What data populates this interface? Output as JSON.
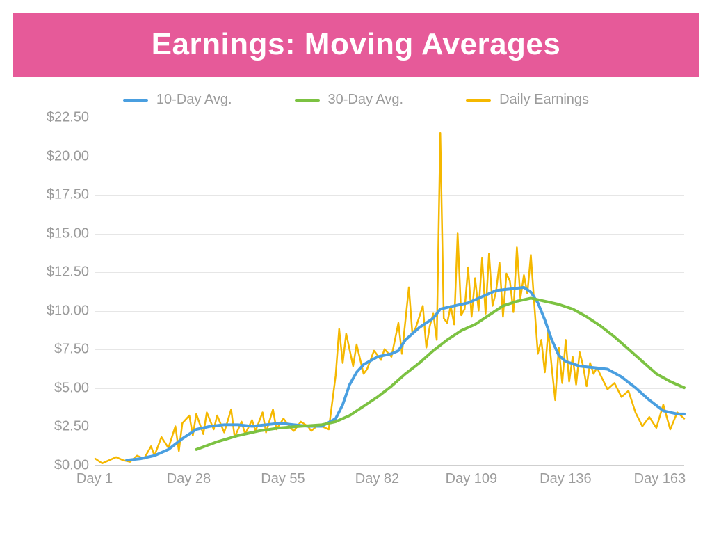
{
  "title": {
    "text": "Earnings: Moving Averages",
    "bg_color": "#e65a99",
    "text_color": "#ffffff",
    "font_size": 44
  },
  "legend": {
    "items": [
      {
        "label": "10-Day Avg.",
        "color": "#4a9fe0"
      },
      {
        "label": "30-Day Avg.",
        "color": "#7cc242"
      },
      {
        "label": "Daily Earnings",
        "color": "#f5b800"
      }
    ],
    "font_color": "#9b9b9b",
    "font_size": 20
  },
  "chart": {
    "type": "line",
    "background_color": "#ffffff",
    "grid_color": "#e6e6e6",
    "axis_color": "#cfcfcf",
    "label_color": "#9b9b9b",
    "label_font_size": 20,
    "xlim": [
      1,
      170
    ],
    "ylim": [
      0,
      22.5
    ],
    "y_ticks": [
      {
        "v": 0.0,
        "label": "$0.00"
      },
      {
        "v": 2.5,
        "label": "$2.50"
      },
      {
        "v": 5.0,
        "label": "$5.00"
      },
      {
        "v": 7.5,
        "label": "$7.50"
      },
      {
        "v": 10.0,
        "label": "$10.00"
      },
      {
        "v": 12.5,
        "label": "$12.50"
      },
      {
        "v": 15.0,
        "label": "$15.00"
      },
      {
        "v": 17.5,
        "label": "$17.50"
      },
      {
        "v": 20.0,
        "label": "$20.00"
      },
      {
        "v": 22.5,
        "label": "$22.50"
      }
    ],
    "x_ticks": [
      {
        "v": 1,
        "label": "Day 1"
      },
      {
        "v": 28,
        "label": "Day 28"
      },
      {
        "v": 55,
        "label": "Day 55"
      },
      {
        "v": 82,
        "label": "Day 82"
      },
      {
        "v": 109,
        "label": "Day 109"
      },
      {
        "v": 136,
        "label": "Day 136"
      },
      {
        "v": 163,
        "label": "Day 163"
      }
    ],
    "series": [
      {
        "name": "Daily Earnings",
        "color": "#f5b800",
        "width": 2.5,
        "points": [
          [
            1,
            0.4
          ],
          [
            3,
            0.1
          ],
          [
            5,
            0.3
          ],
          [
            7,
            0.5
          ],
          [
            9,
            0.3
          ],
          [
            11,
            0.2
          ],
          [
            13,
            0.6
          ],
          [
            15,
            0.4
          ],
          [
            17,
            1.2
          ],
          [
            18,
            0.6
          ],
          [
            20,
            1.8
          ],
          [
            22,
            1.1
          ],
          [
            24,
            2.5
          ],
          [
            25,
            0.9
          ],
          [
            26,
            2.7
          ],
          [
            28,
            3.2
          ],
          [
            29,
            1.9
          ],
          [
            30,
            3.3
          ],
          [
            32,
            2.0
          ],
          [
            33,
            3.4
          ],
          [
            35,
            2.3
          ],
          [
            36,
            3.2
          ],
          [
            38,
            2.1
          ],
          [
            40,
            3.6
          ],
          [
            41,
            1.8
          ],
          [
            43,
            2.8
          ],
          [
            44,
            2.0
          ],
          [
            46,
            2.9
          ],
          [
            47,
            2.2
          ],
          [
            49,
            3.4
          ],
          [
            50,
            2.1
          ],
          [
            52,
            3.6
          ],
          [
            53,
            2.3
          ],
          [
            55,
            3.0
          ],
          [
            57,
            2.4
          ],
          [
            58,
            2.2
          ],
          [
            60,
            2.8
          ],
          [
            62,
            2.5
          ],
          [
            63,
            2.2
          ],
          [
            65,
            2.6
          ],
          [
            67,
            2.4
          ],
          [
            68,
            2.3
          ],
          [
            70,
            5.8
          ],
          [
            71,
            8.8
          ],
          [
            72,
            6.6
          ],
          [
            73,
            8.5
          ],
          [
            75,
            6.4
          ],
          [
            76,
            7.8
          ],
          [
            78,
            5.9
          ],
          [
            79,
            6.2
          ],
          [
            81,
            7.4
          ],
          [
            83,
            6.8
          ],
          [
            84,
            7.5
          ],
          [
            86,
            7.0
          ],
          [
            88,
            9.2
          ],
          [
            89,
            7.2
          ],
          [
            91,
            11.5
          ],
          [
            92,
            8.5
          ],
          [
            93,
            8.9
          ],
          [
            95,
            10.3
          ],
          [
            96,
            7.6
          ],
          [
            97,
            9.0
          ],
          [
            98,
            9.8
          ],
          [
            99,
            8.1
          ],
          [
            100,
            21.5
          ],
          [
            101,
            9.5
          ],
          [
            102,
            9.2
          ],
          [
            103,
            10.3
          ],
          [
            104,
            9.1
          ],
          [
            105,
            15.0
          ],
          [
            106,
            9.7
          ],
          [
            107,
            10.1
          ],
          [
            108,
            12.8
          ],
          [
            109,
            9.6
          ],
          [
            110,
            12.1
          ],
          [
            111,
            10.0
          ],
          [
            112,
            13.4
          ],
          [
            113,
            9.8
          ],
          [
            114,
            13.7
          ],
          [
            115,
            10.3
          ],
          [
            116,
            11.2
          ],
          [
            117,
            13.1
          ],
          [
            118,
            9.6
          ],
          [
            119,
            12.4
          ],
          [
            120,
            11.9
          ],
          [
            121,
            9.9
          ],
          [
            122,
            14.1
          ],
          [
            123,
            10.8
          ],
          [
            124,
            12.3
          ],
          [
            125,
            11.1
          ],
          [
            126,
            13.6
          ],
          [
            127,
            10.4
          ],
          [
            128,
            7.2
          ],
          [
            129,
            8.1
          ],
          [
            130,
            6.0
          ],
          [
            131,
            8.7
          ],
          [
            132,
            6.3
          ],
          [
            133,
            4.2
          ],
          [
            134,
            7.6
          ],
          [
            135,
            5.3
          ],
          [
            136,
            8.1
          ],
          [
            137,
            5.4
          ],
          [
            138,
            7.0
          ],
          [
            139,
            5.2
          ],
          [
            140,
            7.3
          ],
          [
            141,
            6.4
          ],
          [
            142,
            5.1
          ],
          [
            143,
            6.6
          ],
          [
            144,
            5.9
          ],
          [
            145,
            6.3
          ],
          [
            146,
            5.8
          ],
          [
            148,
            4.9
          ],
          [
            150,
            5.3
          ],
          [
            152,
            4.4
          ],
          [
            154,
            4.8
          ],
          [
            156,
            3.4
          ],
          [
            158,
            2.5
          ],
          [
            160,
            3.1
          ],
          [
            162,
            2.4
          ],
          [
            164,
            3.9
          ],
          [
            166,
            2.3
          ],
          [
            168,
            3.4
          ],
          [
            170,
            3.0
          ]
        ]
      },
      {
        "name": "10-Day Avg.",
        "color": "#4a9fe0",
        "width": 4,
        "points": [
          [
            10,
            0.3
          ],
          [
            14,
            0.4
          ],
          [
            18,
            0.6
          ],
          [
            22,
            1.0
          ],
          [
            26,
            1.7
          ],
          [
            30,
            2.3
          ],
          [
            34,
            2.5
          ],
          [
            38,
            2.6
          ],
          [
            42,
            2.6
          ],
          [
            46,
            2.5
          ],
          [
            50,
            2.6
          ],
          [
            54,
            2.7
          ],
          [
            58,
            2.6
          ],
          [
            62,
            2.5
          ],
          [
            66,
            2.5
          ],
          [
            70,
            3.0
          ],
          [
            72,
            3.9
          ],
          [
            74,
            5.2
          ],
          [
            76,
            6.0
          ],
          [
            78,
            6.5
          ],
          [
            82,
            7.0
          ],
          [
            86,
            7.2
          ],
          [
            88,
            7.4
          ],
          [
            90,
            8.1
          ],
          [
            94,
            8.9
          ],
          [
            98,
            9.5
          ],
          [
            100,
            10.1
          ],
          [
            104,
            10.3
          ],
          [
            108,
            10.5
          ],
          [
            112,
            10.9
          ],
          [
            116,
            11.3
          ],
          [
            120,
            11.4
          ],
          [
            124,
            11.5
          ],
          [
            126,
            11.2
          ],
          [
            128,
            10.5
          ],
          [
            130,
            9.4
          ],
          [
            132,
            8.1
          ],
          [
            134,
            7.1
          ],
          [
            136,
            6.7
          ],
          [
            140,
            6.4
          ],
          [
            144,
            6.3
          ],
          [
            148,
            6.2
          ],
          [
            152,
            5.7
          ],
          [
            156,
            5.0
          ],
          [
            160,
            4.2
          ],
          [
            164,
            3.5
          ],
          [
            168,
            3.3
          ],
          [
            170,
            3.3
          ]
        ]
      },
      {
        "name": "30-Day Avg.",
        "color": "#7cc242",
        "width": 4,
        "points": [
          [
            30,
            1.0
          ],
          [
            36,
            1.5
          ],
          [
            42,
            1.9
          ],
          [
            48,
            2.2
          ],
          [
            54,
            2.4
          ],
          [
            60,
            2.5
          ],
          [
            66,
            2.6
          ],
          [
            70,
            2.8
          ],
          [
            74,
            3.2
          ],
          [
            78,
            3.8
          ],
          [
            82,
            4.4
          ],
          [
            86,
            5.1
          ],
          [
            90,
            5.9
          ],
          [
            94,
            6.6
          ],
          [
            98,
            7.4
          ],
          [
            102,
            8.1
          ],
          [
            106,
            8.7
          ],
          [
            110,
            9.1
          ],
          [
            114,
            9.7
          ],
          [
            118,
            10.3
          ],
          [
            122,
            10.6
          ],
          [
            126,
            10.8
          ],
          [
            130,
            10.6
          ],
          [
            134,
            10.4
          ],
          [
            138,
            10.1
          ],
          [
            142,
            9.6
          ],
          [
            146,
            9.0
          ],
          [
            150,
            8.3
          ],
          [
            154,
            7.5
          ],
          [
            158,
            6.7
          ],
          [
            162,
            5.9
          ],
          [
            166,
            5.4
          ],
          [
            170,
            5.0
          ]
        ]
      }
    ]
  }
}
